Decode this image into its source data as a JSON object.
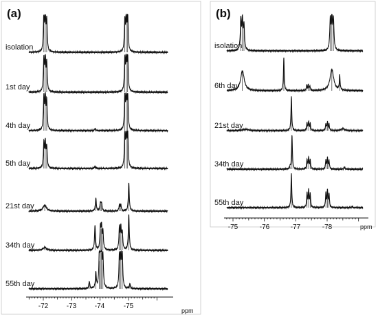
{
  "chart_data": [
    {
      "type": "line",
      "panel_label": "(a)",
      "x_unit": "ppm",
      "x_ticks": [
        "-72",
        "-73",
        "-74",
        "-75"
      ],
      "x_range": [
        -71.45,
        -75.9
      ],
      "x_reversed": true,
      "grid": false,
      "legend": "none",
      "line_color": "#111111",
      "series": [
        {
          "name": "isolation",
          "peaks": [
            {
              "ppm": -72.02,
              "height": 1.0,
              "width": 0.02
            },
            {
              "ppm": -72.07,
              "height": 1.0,
              "width": 0.02
            },
            {
              "ppm": -72.12,
              "height": 0.84,
              "width": 0.02
            },
            {
              "ppm": -74.87,
              "height": 0.84,
              "width": 0.02
            },
            {
              "ppm": -74.92,
              "height": 1.0,
              "width": 0.02
            },
            {
              "ppm": -74.97,
              "height": 1.0,
              "width": 0.02
            }
          ]
        },
        {
          "name": "1st day",
          "peaks": [
            {
              "ppm": -72.02,
              "height": 0.9,
              "width": 0.02
            },
            {
              "ppm": -72.07,
              "height": 0.9,
              "width": 0.02
            },
            {
              "ppm": -72.12,
              "height": 0.76,
              "width": 0.02
            },
            {
              "ppm": -74.87,
              "height": 0.86,
              "width": 0.02
            },
            {
              "ppm": -74.92,
              "height": 1.0,
              "width": 0.02
            },
            {
              "ppm": -74.97,
              "height": 1.0,
              "width": 0.02
            }
          ]
        },
        {
          "name": "4th day",
          "peaks": [
            {
              "ppm": -72.02,
              "height": 0.9,
              "width": 0.02
            },
            {
              "ppm": -72.07,
              "height": 0.9,
              "width": 0.02
            },
            {
              "ppm": -72.12,
              "height": 0.78,
              "width": 0.02
            },
            {
              "ppm": -73.82,
              "height": 0.06,
              "width": 0.02
            },
            {
              "ppm": -74.87,
              "height": 0.9,
              "width": 0.02
            },
            {
              "ppm": -74.92,
              "height": 1.0,
              "width": 0.02
            },
            {
              "ppm": -74.97,
              "height": 1.0,
              "width": 0.02
            }
          ]
        },
        {
          "name": "5th day",
          "peaks": [
            {
              "ppm": -72.02,
              "height": 0.68,
              "width": 0.02
            },
            {
              "ppm": -72.07,
              "height": 0.68,
              "width": 0.02
            },
            {
              "ppm": -72.12,
              "height": 0.58,
              "width": 0.02
            },
            {
              "ppm": -73.82,
              "height": 0.06,
              "width": 0.02
            },
            {
              "ppm": -74.87,
              "height": 0.9,
              "width": 0.02
            },
            {
              "ppm": -74.92,
              "height": 1.0,
              "width": 0.02
            },
            {
              "ppm": -74.97,
              "height": 1.0,
              "width": 0.02
            }
          ]
        },
        {
          "name": "21st day",
          "peaks": [
            {
              "ppm": -72.05,
              "height": 0.17,
              "width": 0.07
            },
            {
              "ppm": -73.85,
              "height": 0.37,
              "width": 0.02
            },
            {
              "ppm": -74.01,
              "height": 0.22,
              "width": 0.02
            },
            {
              "ppm": -74.05,
              "height": 0.22,
              "width": 0.02
            },
            {
              "ppm": -74.68,
              "height": 0.17,
              "width": 0.02
            },
            {
              "ppm": -74.73,
              "height": 0.17,
              "width": 0.02
            },
            {
              "ppm": -75.01,
              "height": 0.79,
              "width": 0.02
            }
          ]
        },
        {
          "name": "34th day",
          "peaks": [
            {
              "ppm": -72.05,
              "height": 0.08,
              "width": 0.07
            },
            {
              "ppm": -73.82,
              "height": 0.68,
              "width": 0.02
            },
            {
              "ppm": -74.01,
              "height": 0.6,
              "width": 0.02
            },
            {
              "ppm": -74.05,
              "height": 0.6,
              "width": 0.02
            },
            {
              "ppm": -74.1,
              "height": 0.48,
              "width": 0.02
            },
            {
              "ppm": -74.68,
              "height": 0.6,
              "width": 0.02
            },
            {
              "ppm": -74.73,
              "height": 0.6,
              "width": 0.02
            },
            {
              "ppm": -74.78,
              "height": 0.48,
              "width": 0.02
            },
            {
              "ppm": -75.01,
              "height": 1.0,
              "width": 0.02
            }
          ]
        },
        {
          "name": "55th day",
          "peaks": [
            {
              "ppm": -73.62,
              "height": 0.2,
              "width": 0.02
            },
            {
              "ppm": -73.85,
              "height": 0.44,
              "width": 0.02
            },
            {
              "ppm": -73.97,
              "height": 0.78,
              "width": 0.02
            },
            {
              "ppm": -74.01,
              "height": 1.0,
              "width": 0.02
            },
            {
              "ppm": -74.05,
              "height": 1.0,
              "width": 0.02
            },
            {
              "ppm": -74.1,
              "height": 0.82,
              "width": 0.02
            },
            {
              "ppm": -74.68,
              "height": 0.9,
              "width": 0.02
            },
            {
              "ppm": -74.73,
              "height": 1.0,
              "width": 0.02
            },
            {
              "ppm": -74.78,
              "height": 0.9,
              "width": 0.02
            },
            {
              "ppm": -75.05,
              "height": 0.14,
              "width": 0.02
            }
          ]
        }
      ]
    },
    {
      "type": "line",
      "panel_label": "(b)",
      "x_unit": "ppm",
      "x_ticks": [
        "-75",
        "-76",
        "-77",
        "-78"
      ],
      "x_range": [
        -74.9,
        -78.25
      ],
      "x_reversed": true,
      "grid": false,
      "legend": "none",
      "line_color": "#111111",
      "series": [
        {
          "name": "isolation",
          "peaks": [
            {
              "ppm": -75.25,
              "height": 0.86,
              "width": 0.02
            },
            {
              "ppm": -75.3,
              "height": 0.86,
              "width": 0.02
            },
            {
              "ppm": -75.35,
              "height": 0.7,
              "width": 0.02
            },
            {
              "ppm": -78.1,
              "height": 0.86,
              "width": 0.02
            },
            {
              "ppm": -78.15,
              "height": 1.0,
              "width": 0.02
            },
            {
              "ppm": -78.2,
              "height": 0.86,
              "width": 0.02
            }
          ]
        },
        {
          "name": "6th day",
          "peaks": [
            {
              "ppm": -75.3,
              "height": 0.58,
              "width": 0.07
            },
            {
              "ppm": -76.62,
              "height": 0.96,
              "width": 0.015
            },
            {
              "ppm": -77.35,
              "height": 0.16,
              "width": 0.015
            },
            {
              "ppm": -77.4,
              "height": 0.16,
              "width": 0.015
            },
            {
              "ppm": -77.45,
              "height": 0.13,
              "width": 0.015
            },
            {
              "ppm": -78.15,
              "height": 0.62,
              "width": 0.07
            },
            {
              "ppm": -78.4,
              "height": 0.42,
              "width": 0.015
            }
          ]
        },
        {
          "name": "21st day",
          "peaks": [
            {
              "ppm": -75.4,
              "height": 0.04,
              "width": 0.1
            },
            {
              "ppm": -76.86,
              "height": 1.0,
              "width": 0.015
            },
            {
              "ppm": -77.36,
              "height": 0.22,
              "width": 0.015
            },
            {
              "ppm": -77.41,
              "height": 0.26,
              "width": 0.015
            },
            {
              "ppm": -77.46,
              "height": 0.2,
              "width": 0.015
            },
            {
              "ppm": -77.96,
              "height": 0.2,
              "width": 0.015
            },
            {
              "ppm": -78.01,
              "height": 0.24,
              "width": 0.015
            },
            {
              "ppm": -78.06,
              "height": 0.18,
              "width": 0.015
            },
            {
              "ppm": -78.5,
              "height": 0.06,
              "width": 0.06
            }
          ]
        },
        {
          "name": "34th day",
          "peaks": [
            {
              "ppm": -76.82,
              "height": 0.07,
              "width": 0.015
            },
            {
              "ppm": -76.88,
              "height": 1.0,
              "width": 0.015
            },
            {
              "ppm": -77.36,
              "height": 0.28,
              "width": 0.015
            },
            {
              "ppm": -77.41,
              "height": 0.32,
              "width": 0.015
            },
            {
              "ppm": -77.46,
              "height": 0.26,
              "width": 0.015
            },
            {
              "ppm": -77.96,
              "height": 0.27,
              "width": 0.015
            },
            {
              "ppm": -78.01,
              "height": 0.31,
              "width": 0.015
            },
            {
              "ppm": -78.06,
              "height": 0.24,
              "width": 0.015
            },
            {
              "ppm": -78.55,
              "height": 0.08,
              "width": 0.015
            }
          ]
        },
        {
          "name": "55th day",
          "peaks": [
            {
              "ppm": -76.86,
              "height": 1.0,
              "width": 0.015
            },
            {
              "ppm": -77.36,
              "height": 0.42,
              "width": 0.015
            },
            {
              "ppm": -77.41,
              "height": 0.48,
              "width": 0.015
            },
            {
              "ppm": -77.46,
              "height": 0.4,
              "width": 0.015
            },
            {
              "ppm": -77.96,
              "height": 0.42,
              "width": 0.015
            },
            {
              "ppm": -78.01,
              "height": 0.48,
              "width": 0.015
            },
            {
              "ppm": -78.06,
              "height": 0.4,
              "width": 0.015
            },
            {
              "ppm": -78.8,
              "height": 0.04,
              "width": 0.015
            }
          ]
        }
      ]
    }
  ]
}
